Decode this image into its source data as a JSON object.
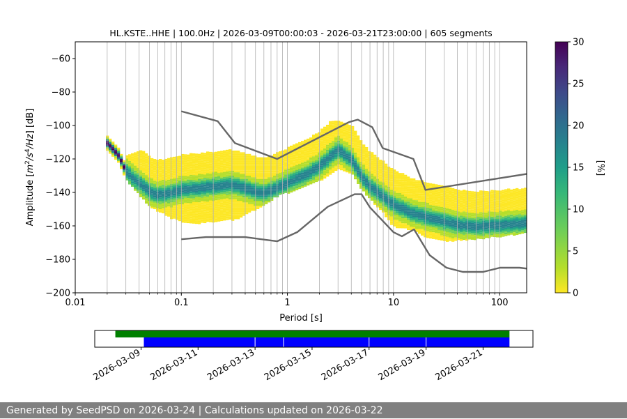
{
  "chart_data": {
    "type": "heatmap",
    "title": "HL.KSTE..HHE | 100.0Hz | 2026-03-09T00:00:03 - 2026-03-21T23:00:00 | 605 segments",
    "xlabel": "Period [s]",
    "ylabel": "Amplitude [m²/s⁴/Hz] [dB]",
    "xscale": "log",
    "xlim": [
      0.01,
      180
    ],
    "ylim": [
      -200,
      -50
    ],
    "x_ticks": [
      "0.01",
      "0.1",
      "1",
      "10",
      "100"
    ],
    "y_ticks": [
      "−60",
      "−80",
      "−100",
      "−120",
      "−140",
      "−160",
      "−180",
      "−200"
    ],
    "grid": "vertical lines at 1-2-3...9 × decades",
    "colorbar": {
      "label": "[%]",
      "range": [
        0,
        30
      ],
      "ticks": [
        "0",
        "5",
        "10",
        "15",
        "20",
        "25",
        "30"
      ],
      "colormap": "viridis_r"
    },
    "mode_curve": {
      "x": [
        0.02,
        0.023,
        0.026,
        0.03,
        0.035,
        0.04,
        0.05,
        0.06,
        0.08,
        0.1,
        0.15,
        0.2,
        0.3,
        0.4,
        0.5,
        0.6,
        0.8,
        1.0,
        1.5,
        2.0,
        3.0,
        4.0,
        5.0,
        6.0,
        8.0,
        10.0,
        13.0,
        15.0,
        20.0,
        30.0,
        40.0,
        60.0,
        100.0,
        180.0
      ],
      "y": [
        -110,
        -114,
        -118,
        -127,
        -131,
        -134,
        -139,
        -141,
        -140,
        -138,
        -137,
        -136,
        -135,
        -137,
        -139,
        -140,
        -137,
        -134,
        -129,
        -124,
        -114,
        -120,
        -130,
        -136,
        -142,
        -147,
        -150,
        -152,
        -154,
        -157,
        -159,
        -160,
        -159,
        -158
      ]
    },
    "density_band": {
      "x": [
        0.02,
        0.03,
        0.05,
        0.08,
        0.1,
        0.15,
        0.2,
        0.3,
        0.5,
        0.8,
        1.0,
        2.0,
        3.0,
        4.0,
        5.0,
        8.0,
        10.0,
        15.0,
        20.0,
        30.0,
        50.0,
        100.0,
        180.0
      ],
      "upper": [
        -106,
        -118,
        -113,
        -109,
        -108,
        -109,
        -110,
        -108,
        -108,
        -108,
        -106,
        -98,
        -97,
        -100,
        -103,
        -107,
        -110,
        -117,
        -122,
        -124,
        -128,
        -130,
        -126
      ],
      "lower": [
        -117,
        -132,
        -148,
        -155,
        -157,
        -160,
        -160,
        -157,
        -150,
        -142,
        -140,
        -133,
        -126,
        -128,
        -138,
        -152,
        -160,
        -162,
        -166,
        -169,
        -168,
        -166,
        -164
      ]
    },
    "nhnm": {
      "name": "NHNM",
      "x": [
        0.1,
        0.22,
        0.32,
        0.8,
        3.8,
        4.6,
        6.3,
        7.9,
        15.4,
        20,
        354.8
      ],
      "y": [
        -91.5,
        -97.4,
        -110.5,
        -120,
        -98,
        -96.5,
        -101,
        -113.5,
        -120,
        -138.5,
        -126
      ]
    },
    "nlnm": {
      "name": "NLNM",
      "x": [
        0.1,
        0.17,
        0.4,
        0.8,
        1.24,
        2.4,
        4.3,
        5.0,
        6.0,
        10.0,
        12.0,
        15.6,
        21.9,
        31.6,
        45.0,
        70.0,
        101.0,
        154.0,
        328.0
      ],
      "y": [
        -168,
        -166.7,
        -166.7,
        -169.2,
        -163.7,
        -148.6,
        -141.1,
        -141.1,
        -149,
        -163.8,
        -166.2,
        -162.1,
        -177.5,
        -185,
        -187.5,
        -187.5,
        -185,
        -185,
        -187.5
      ]
    },
    "timeline": {
      "dates": [
        "2026-03-09",
        "2026-03-11",
        "2026-03-13",
        "2026-03-15",
        "2026-03-17",
        "2026-03-19",
        "2026-03-21"
      ],
      "green_bar": {
        "start": "2026-03-08",
        "end": "2026-03-22"
      },
      "blue_bar": {
        "start": "2026-03-09",
        "end": "2026-03-22"
      },
      "blue_gaps": [
        "2026-03-13 00:00",
        "2026-03-14 00:00",
        "2026-03-17 00:00",
        "2026-03-19 00:00"
      ],
      "colors": {
        "green": "#008000",
        "blue": "#0000ff"
      }
    }
  },
  "footer": {
    "text": "Generated by SeedPSD on 2026-03-24 | Calculations updated on 2026-03-22"
  }
}
